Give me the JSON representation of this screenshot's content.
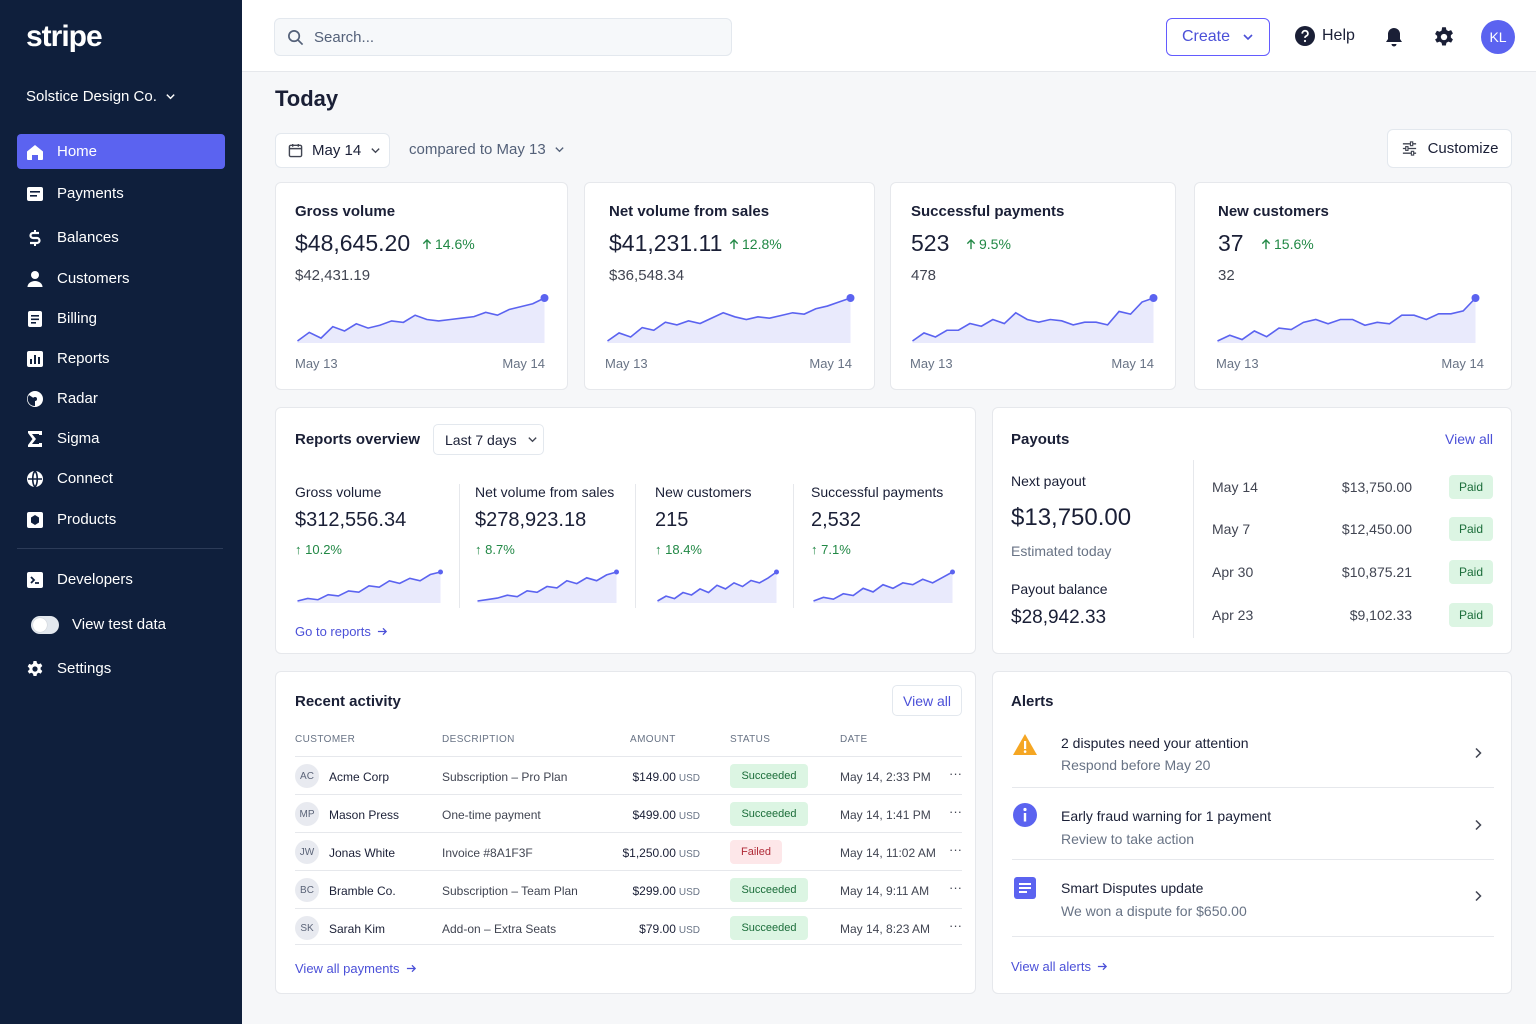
{
  "app": {
    "logo": "stripe",
    "account_name": "Solstice Design Co."
  },
  "sidebar": {
    "items": [
      {
        "label": "Home",
        "icon": "home-icon"
      },
      {
        "label": "Payments",
        "icon": "payments-icon"
      },
      {
        "label": "Balances",
        "icon": "balances-icon"
      },
      {
        "label": "Customers",
        "icon": "customers-icon"
      },
      {
        "label": "Billing",
        "icon": "billing-icon"
      },
      {
        "label": "Reports",
        "icon": "reports-icon"
      },
      {
        "label": "Radar",
        "icon": "radar-icon"
      },
      {
        "label": "Sigma",
        "icon": "sigma-icon"
      },
      {
        "label": "Connect",
        "icon": "connect-icon"
      },
      {
        "label": "Products",
        "icon": "products-icon"
      }
    ],
    "developers": "Developers",
    "test_data": "View test data",
    "settings": "Settings"
  },
  "topbar": {
    "search_placeholder": "Search...",
    "create": "Create",
    "help": "Help",
    "avatar": "KL"
  },
  "page": {
    "title": "Today",
    "date": "May 14",
    "compare": "compared to May 13",
    "customize": "Customize"
  },
  "kpis": [
    {
      "title": "Gross volume",
      "value": "$48,645.20",
      "change": "14.6%",
      "previous": "$42,431.19",
      "start": "May 13",
      "end": "May 14",
      "trend": [
        18,
        24,
        20,
        28,
        25,
        30,
        27,
        29,
        32,
        31,
        36,
        33,
        32,
        33,
        34,
        35,
        38,
        36,
        40,
        42,
        44,
        48
      ]
    },
    {
      "title": "Net volume from sales",
      "value": "$41,231.11",
      "change": "12.8%",
      "previous": "$36,548.34",
      "start": "May 13",
      "end": "May 14",
      "trend": [
        16,
        22,
        19,
        26,
        24,
        30,
        28,
        31,
        29,
        33,
        37,
        34,
        32,
        34,
        33,
        35,
        37,
        36,
        40,
        42,
        45,
        48
      ]
    },
    {
      "title": "Successful payments",
      "value": "523",
      "change": "9.5%",
      "previous": "478",
      "start": "May 13",
      "end": "May 14",
      "trend": [
        16,
        22,
        19,
        24,
        24,
        29,
        27,
        32,
        29,
        37,
        32,
        30,
        32,
        31,
        28,
        30,
        30,
        28,
        38,
        36,
        45,
        48
      ]
    },
    {
      "title": "New customers",
      "value": "37",
      "change": "15.6%",
      "previous": "32",
      "start": "May 13",
      "end": "May 14",
      "trend": [
        18,
        22,
        19,
        25,
        21,
        27,
        26,
        31,
        33,
        30,
        33,
        33,
        29,
        31,
        30,
        36,
        36,
        33,
        37,
        37,
        39,
        48
      ]
    }
  ],
  "reports": {
    "title": "Reports overview",
    "range": "Last 7 days",
    "metrics": [
      {
        "title": "Gross volume",
        "value": "$312,556.34",
        "change": "10.2%",
        "trend": [
          10,
          12,
          11,
          15,
          14,
          18,
          17,
          22,
          21,
          26,
          24,
          28,
          26,
          31,
          33
        ]
      },
      {
        "title": "Net volume from sales",
        "value": "$278,923.18",
        "change": "8.7%",
        "trend": [
          10,
          11,
          12,
          14,
          13,
          17,
          16,
          20,
          19,
          24,
          22,
          26,
          24,
          28,
          30
        ]
      },
      {
        "title": "New customers",
        "value": "215",
        "change": "18.4%",
        "trend": [
          8,
          12,
          10,
          15,
          13,
          18,
          15,
          21,
          18,
          23,
          20,
          25,
          23,
          27,
          32
        ]
      },
      {
        "title": "Successful payments",
        "value": "2,532",
        "change": "7.1%",
        "trend": [
          12,
          14,
          13,
          16,
          15,
          19,
          17,
          21,
          19,
          22,
          21,
          24,
          22,
          25,
          28
        ]
      }
    ],
    "link": "Go to reports"
  },
  "payouts": {
    "title": "Payouts",
    "view_all": "View all",
    "next_label": "Next payout",
    "next_amount": "$13,750.00",
    "next_note": "Estimated today",
    "balance_label": "Payout balance",
    "balance": "$28,942.33",
    "rows": [
      {
        "date": "May 14",
        "amount": "$13,750.00",
        "status": "Paid"
      },
      {
        "date": "May 7",
        "amount": "$12,450.00",
        "status": "Paid"
      },
      {
        "date": "Apr 30",
        "amount": "$10,875.21",
        "status": "Paid"
      },
      {
        "date": "Apr 23",
        "amount": "$9,102.33",
        "status": "Paid"
      }
    ]
  },
  "activity": {
    "title": "Recent activity",
    "view_all": "View all",
    "columns": [
      "CUSTOMER",
      "DESCRIPTION",
      "AMOUNT",
      "STATUS",
      "DATE"
    ],
    "rows": [
      {
        "initials": "AC",
        "customer": "Acme Corp",
        "description": "Subscription – Pro Plan",
        "amount": "$149.00",
        "currency": "USD",
        "status": "Succeeded",
        "date": "May 14, 2:33 PM"
      },
      {
        "initials": "MP",
        "customer": "Mason Press",
        "description": "One-time payment",
        "amount": "$499.00",
        "currency": "USD",
        "status": "Succeeded",
        "date": "May 14, 1:41 PM"
      },
      {
        "initials": "JW",
        "customer": "Jonas White",
        "description": "Invoice #8A1F3F",
        "amount": "$1,250.00",
        "currency": "USD",
        "status": "Failed",
        "date": "May 14, 11:02 AM"
      },
      {
        "initials": "BC",
        "customer": "Bramble Co.",
        "description": "Subscription – Team Plan",
        "amount": "$299.00",
        "currency": "USD",
        "status": "Succeeded",
        "date": "May 14, 9:11 AM"
      },
      {
        "initials": "SK",
        "customer": "Sarah Kim",
        "description": "Add-on – Extra Seats",
        "amount": "$79.00",
        "currency": "USD",
        "status": "Succeeded",
        "date": "May 14, 8:23 AM"
      }
    ],
    "more": "···",
    "link": "View all payments"
  },
  "alerts": {
    "title": "Alerts",
    "items": [
      {
        "title": "2 disputes need your attention",
        "subtitle": "Respond before May 20",
        "icon": "warning-icon",
        "color": "#f5a623"
      },
      {
        "title": "Early fraud warning for 1 payment",
        "subtitle": "Review to take action",
        "icon": "info-icon",
        "color": "#5b63f0"
      },
      {
        "title": "Smart Disputes update",
        "subtitle": "We won a dispute for $650.00",
        "icon": "document-icon",
        "color": "#5b63f0"
      }
    ],
    "link": "View all alerts"
  },
  "colors": {
    "accent": "#5b63f0",
    "sidebar": "#0f1f3c",
    "positive": "#218845",
    "negative": "#b02a37"
  }
}
